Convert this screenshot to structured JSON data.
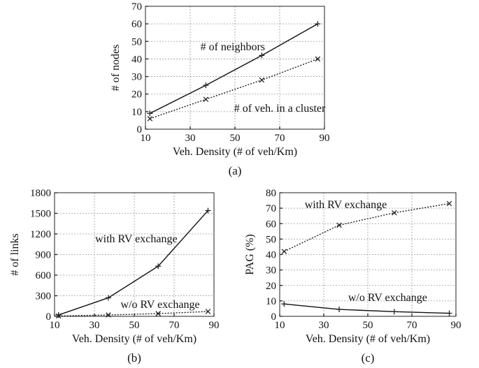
{
  "chart_data": [
    {
      "id": "a",
      "type": "line",
      "caption": "(a)",
      "xlabel": "Veh. Density (# of veh/Km)",
      "ylabel": "# of nodes",
      "xlim": [
        10,
        90
      ],
      "ylim": [
        0,
        70
      ],
      "xticks": [
        10,
        30,
        50,
        70,
        90
      ],
      "yticks": [
        0,
        10,
        20,
        30,
        40,
        50,
        60,
        70
      ],
      "grid": true,
      "x": [
        12,
        37,
        62,
        87
      ],
      "series": [
        {
          "name": "# of neighbors",
          "marker": "plus",
          "dash": "solid",
          "values": [
            9,
            25,
            42,
            60
          ]
        },
        {
          "name": "# of veh. in a cluster",
          "marker": "cross",
          "dash": "dotted",
          "values": [
            6,
            17,
            28,
            40
          ]
        }
      ],
      "annotations": [
        {
          "text": "# of neighbors",
          "x": 49,
          "y": 45
        },
        {
          "text": "# of veh. in a cluster",
          "x": 70,
          "y": 10
        }
      ]
    },
    {
      "id": "b",
      "type": "line",
      "caption": "(b)",
      "xlabel": "Veh. Density (# of veh/Km)",
      "ylabel": "# of links",
      "xlim": [
        10,
        90
      ],
      "ylim": [
        0,
        1800
      ],
      "xticks": [
        10,
        30,
        50,
        70,
        90
      ],
      "yticks": [
        0,
        300,
        600,
        900,
        1200,
        1500,
        1800
      ],
      "grid": true,
      "x": [
        12,
        37,
        62,
        87
      ],
      "series": [
        {
          "name": "with RV exchange",
          "marker": "plus",
          "dash": "solid",
          "values": [
            20,
            270,
            730,
            1540
          ]
        },
        {
          "name": "w/o RV exchange",
          "marker": "cross",
          "dash": "dotted",
          "values": [
            5,
            20,
            40,
            70
          ]
        }
      ],
      "annotations": [
        {
          "text": "with RV exchange",
          "x": 51,
          "y": 1080
        },
        {
          "text": "w/o RV exchange",
          "x": 63,
          "y": 120
        }
      ]
    },
    {
      "id": "c",
      "type": "line",
      "caption": "(c)",
      "xlabel": "Veh. Density (# of veh/Km)",
      "ylabel": "PAG (%)",
      "xlim": [
        10,
        90
      ],
      "ylim": [
        0,
        80
      ],
      "xticks": [
        10,
        30,
        50,
        70,
        90
      ],
      "yticks": [
        0,
        10,
        20,
        30,
        40,
        50,
        60,
        70,
        80
      ],
      "grid": true,
      "x": [
        12,
        37,
        62,
        87
      ],
      "series": [
        {
          "name": "with RV exchange",
          "marker": "cross",
          "dash": "dotted",
          "values": [
            42,
            59,
            67,
            73
          ]
        },
        {
          "name": "w/o RV exchange",
          "marker": "plus",
          "dash": "solid",
          "values": [
            8,
            4.5,
            3,
            2
          ]
        }
      ],
      "annotations": [
        {
          "text": "with RV exchange",
          "x": 40,
          "y": 70
        },
        {
          "text": "w/o RV exchange",
          "x": 59,
          "y": 10
        }
      ]
    }
  ]
}
